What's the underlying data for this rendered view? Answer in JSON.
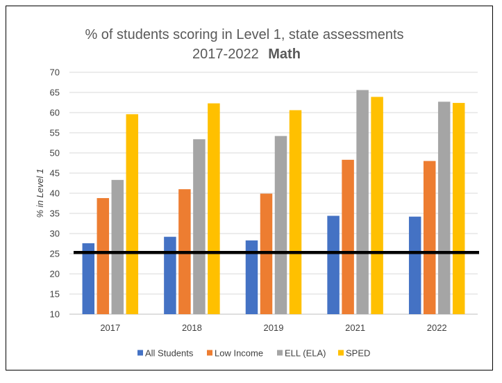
{
  "chart_data": {
    "type": "bar",
    "title_line1": "% of students scoring in Level 1, state assessments",
    "title_line2_years": "2017-2022",
    "title_line2_subject": "Math",
    "xlabel": "",
    "ylabel": "% in Level 1",
    "ylim": [
      10,
      70
    ],
    "yticks": [
      "10",
      "15",
      "20",
      "25",
      "30",
      "35",
      "40",
      "45",
      "50",
      "55",
      "60",
      "65",
      "70"
    ],
    "categories": [
      "2017",
      "2018",
      "2019",
      "2021",
      "2022"
    ],
    "series": [
      {
        "name": "All Students",
        "color": "#4472C4",
        "values": [
          27.6,
          29.2,
          28.3,
          34.4,
          34.2
        ]
      },
      {
        "name": "Low Income",
        "color": "#ED7D31",
        "values": [
          38.8,
          41.0,
          39.9,
          48.3,
          48.0
        ]
      },
      {
        "name": "ELL (ELA)",
        "color": "#A5A5A5",
        "values": [
          43.3,
          53.4,
          54.2,
          65.6,
          62.7
        ]
      },
      {
        "name": "SPED",
        "color": "#FFC000",
        "values": [
          59.6,
          62.3,
          60.6,
          63.9,
          62.4
        ]
      }
    ],
    "reference_line": {
      "value": 25.3,
      "color": "#000000"
    },
    "grid": true,
    "legend_position": "bottom"
  }
}
